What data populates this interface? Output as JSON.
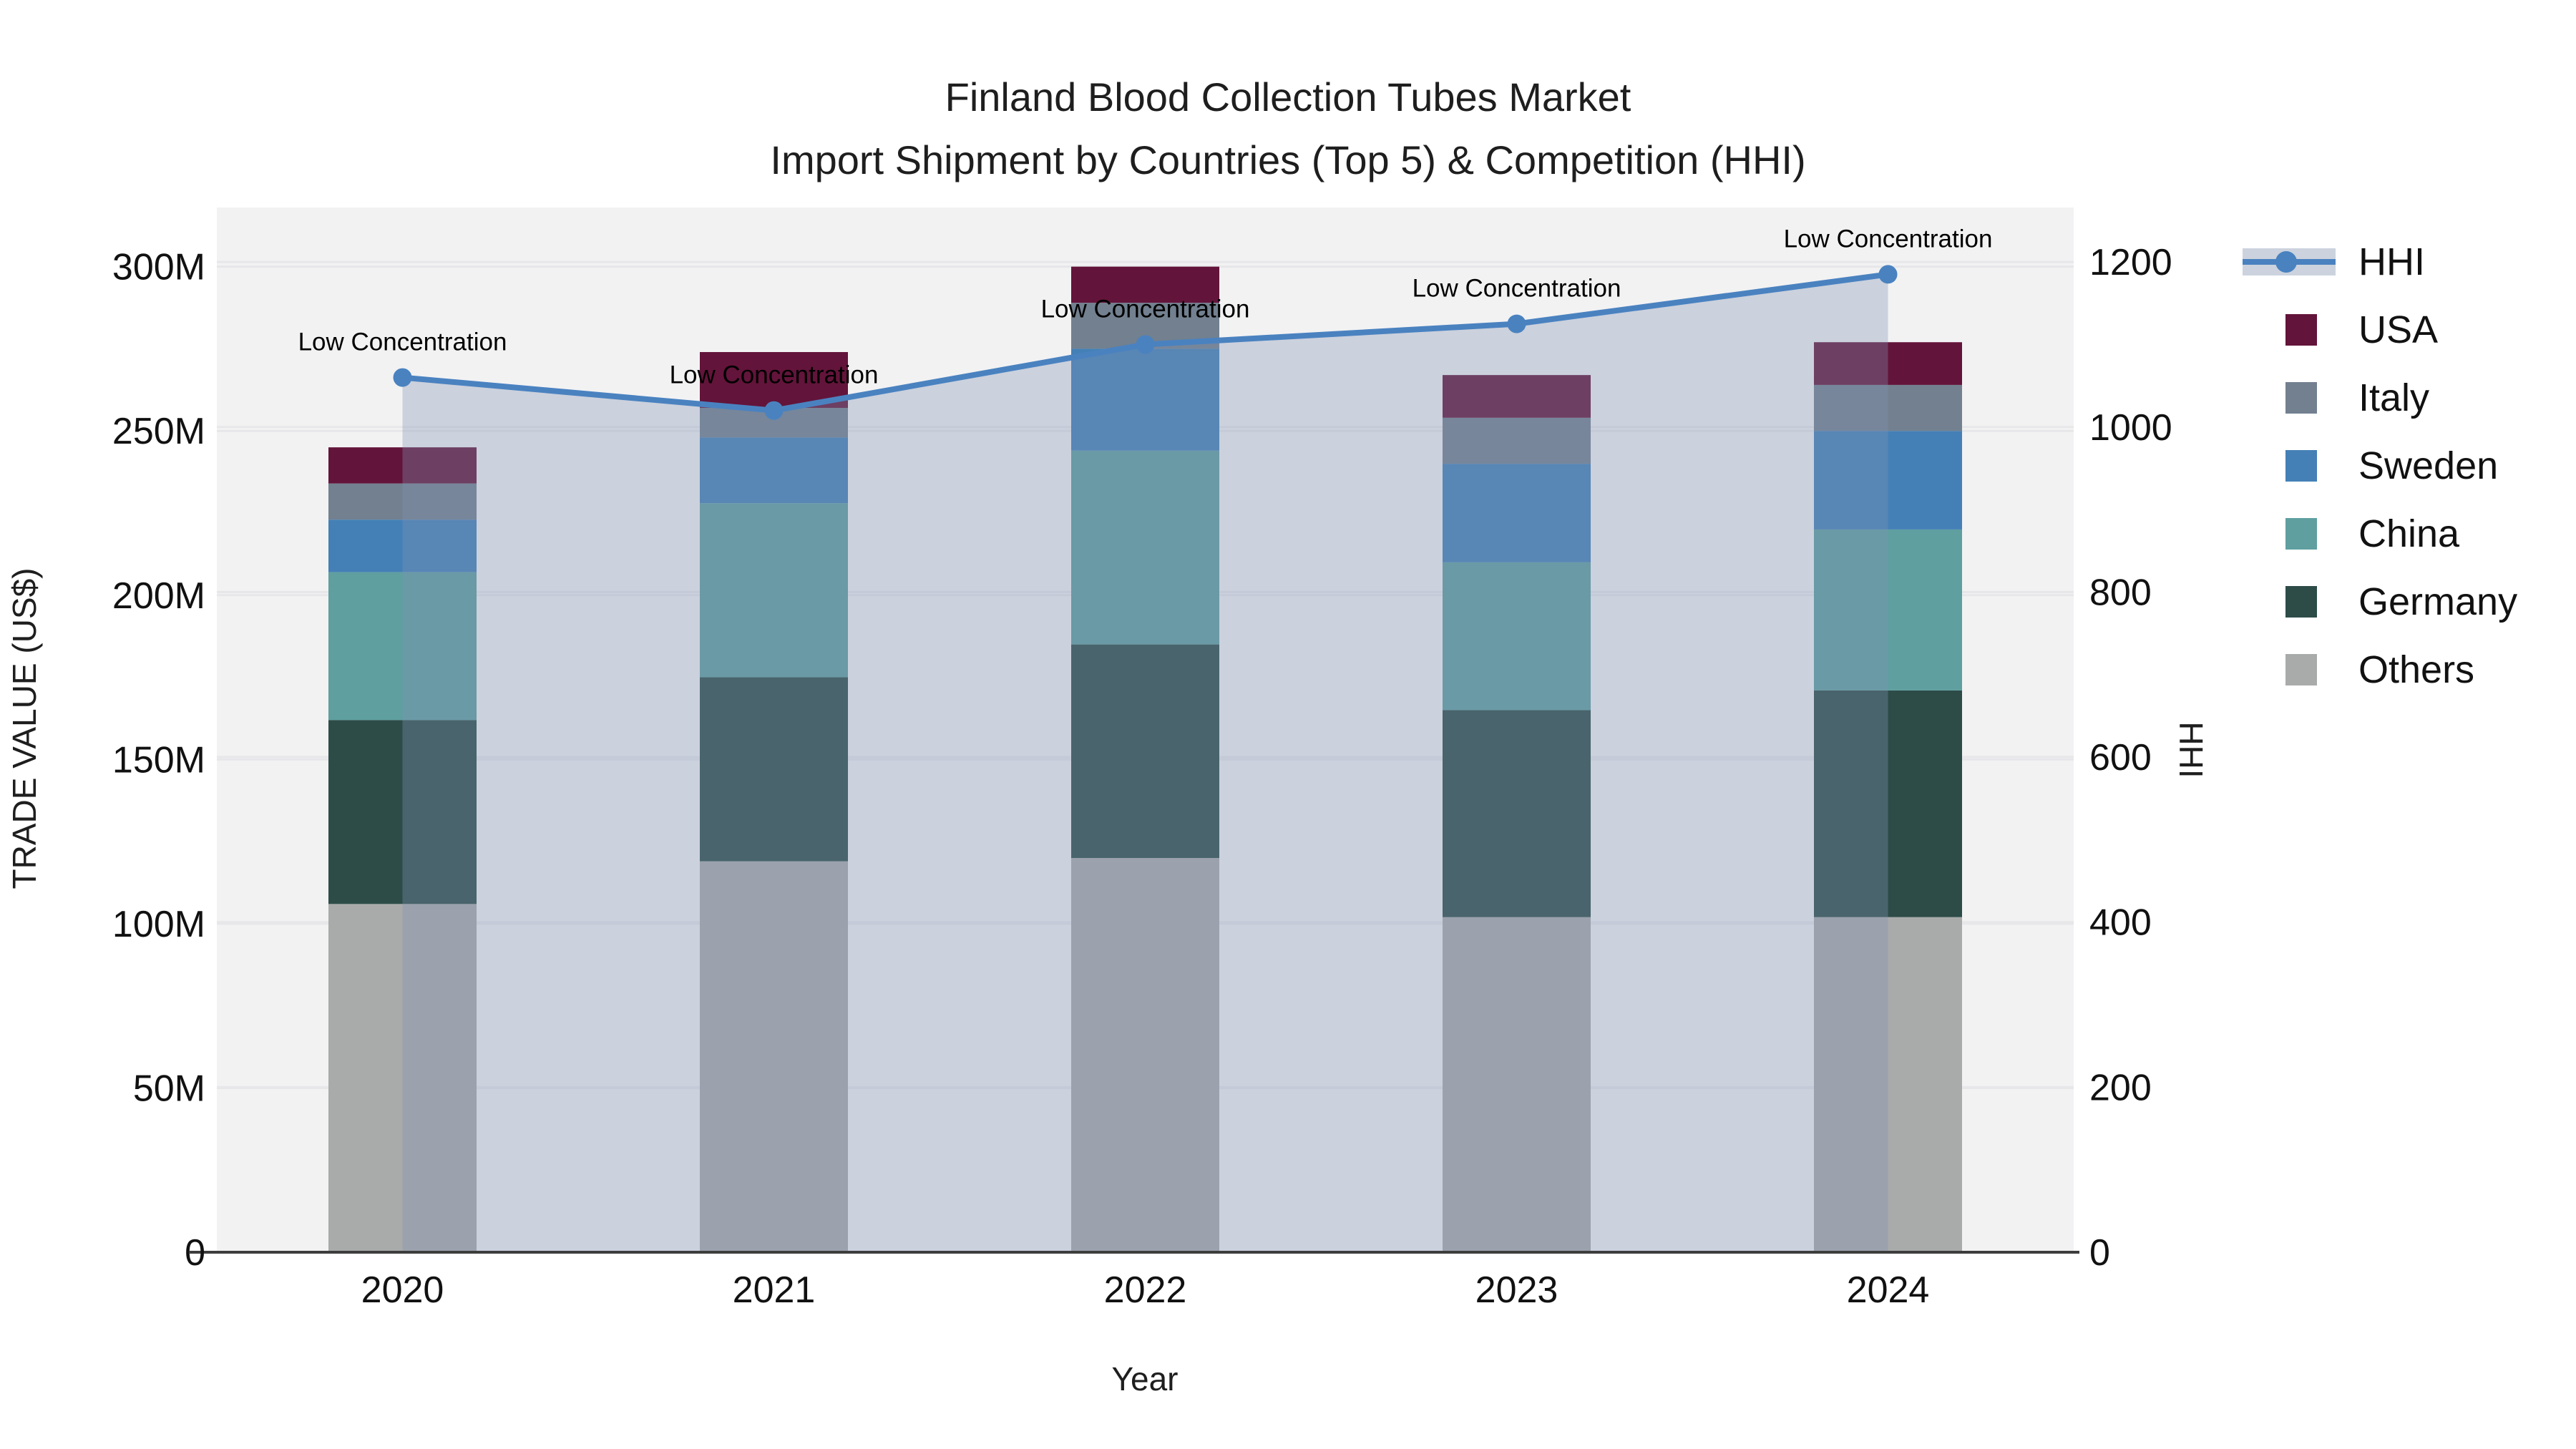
{
  "chart_data": {
    "type": "bar+line",
    "title": "Finland Blood Collection Tubes Market",
    "subtitle": "Import Shipment by Countries (Top 5) & Competition (HHI)",
    "x_axis": {
      "title": "Year",
      "categories": [
        "2020",
        "2021",
        "2022",
        "2023",
        "2024"
      ]
    },
    "y_axis": {
      "title": "TRADE VALUE (US$)",
      "tick_values": [
        0,
        50,
        100,
        150,
        200,
        250,
        300
      ],
      "tick_labels": [
        "0",
        "50M",
        "100M",
        "150M",
        "200M",
        "250M",
        "300M"
      ],
      "range": [
        0,
        318
      ],
      "unit": "M US$"
    },
    "y2_axis": {
      "title": "HHI",
      "tick_values": [
        0,
        200,
        400,
        600,
        800,
        1000,
        1200
      ],
      "tick_labels": [
        "0",
        "200",
        "400",
        "600",
        "800",
        "1000",
        "1200"
      ],
      "range": [
        0,
        1266
      ]
    },
    "series": [
      {
        "name": "Others",
        "color": "#a9abaa",
        "values": [
          106,
          119,
          120,
          102,
          102
        ]
      },
      {
        "name": "Germany",
        "color": "#2d4c48",
        "values": [
          56,
          56,
          65,
          63,
          69
        ]
      },
      {
        "name": "China",
        "color": "#5f9fa0",
        "values": [
          45,
          53,
          59,
          45,
          49
        ]
      },
      {
        "name": "Sweden",
        "color": "#4480b6",
        "values": [
          16,
          20,
          31,
          30,
          30
        ]
      },
      {
        "name": "Italy",
        "color": "#72808f",
        "values": [
          11,
          9,
          14,
          14,
          14
        ]
      },
      {
        "name": "USA",
        "color": "#63143a",
        "values": [
          11,
          17,
          11,
          13,
          13
        ]
      }
    ],
    "line_series": {
      "name": "HHI",
      "color": "#4a82c0",
      "area_color": "rgba(130,148,180,0.34)",
      "values": [
        1060,
        1020,
        1100,
        1125,
        1185
      ]
    },
    "point_labels": [
      "Low Concentration",
      "Low Concentration",
      "Low Concentration",
      "Low Concentration",
      "Low Concentration"
    ],
    "legend_order": [
      "HHI",
      "USA",
      "Italy",
      "Sweden",
      "China",
      "Germany",
      "Others"
    ],
    "layout_hints": {
      "grid": true,
      "legend_position": "right",
      "plot_bg": "#f2f2f3",
      "grid_color": "#e7e7ea",
      "axis_line_color": "#3d3d3d",
      "text_color": "#111111",
      "hhi_legend_band_color": "#ccd3de"
    }
  }
}
